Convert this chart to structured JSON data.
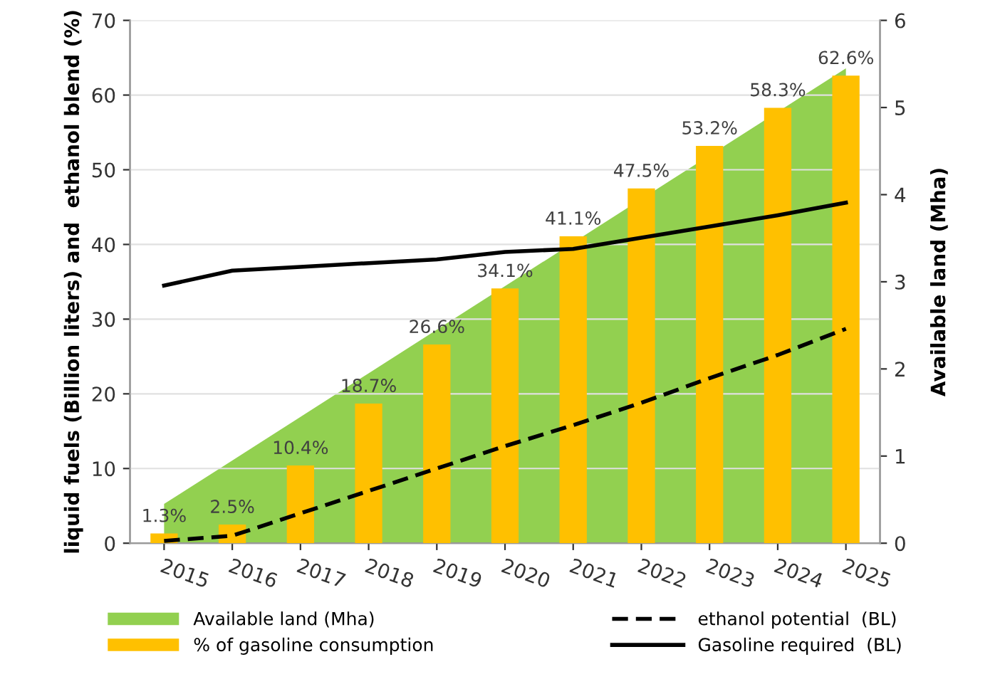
{
  "chart_data": {
    "type": "bar",
    "ylabel": "liquid fuels (Billion liters) and  ethanol blend (%)",
    "y2label": "Available land (Mha)",
    "categories": [
      "2015",
      "2016",
      "2017",
      "2018",
      "2019",
      "2020",
      "2021",
      "2022",
      "2023",
      "2024",
      "2025"
    ],
    "series": [
      {
        "name": "Available land (Mha)",
        "type": "area",
        "axis": "y2",
        "color": "#92d050",
        "values": [
          0.45,
          0.95,
          1.45,
          1.95,
          2.45,
          2.95,
          null,
          null,
          null,
          null,
          5.45
        ]
      },
      {
        "name": "% of gasoline consumption",
        "color": "#ffc000",
        "values": [
          1.3,
          2.5,
          10.4,
          18.7,
          26.6,
          34.1,
          41.1,
          47.5,
          53.2,
          58.3,
          62.6
        ],
        "value_labels": [
          "1.3%",
          "2.5%",
          "10.4%",
          "18.7%",
          "26.6%",
          "34.1%",
          "41.1%",
          "47.5%",
          "53.2%",
          "58.3%",
          "62.6%"
        ]
      },
      {
        "name": "ethanol potential  (BL)",
        "type": "line",
        "color": "#000000",
        "line_style": "dashed",
        "values": [
          0.3,
          1,
          4,
          7,
          10,
          13,
          15.8,
          18.8,
          22.1,
          25.2,
          28.7
        ]
      },
      {
        "name": "Gasoline required  (BL)",
        "type": "line",
        "color": "#000000",
        "line_style": "solid",
        "values": [
          34.5,
          36.5,
          37,
          37.5,
          38,
          39,
          39.4,
          40.9,
          42.4,
          43.9,
          45.6
        ]
      }
    ],
    "ylim": [
      0,
      70
    ],
    "yticks": [
      0,
      10,
      20,
      30,
      40,
      50,
      60,
      70
    ],
    "y2lim": [
      0,
      6
    ],
    "y2ticks": [
      0,
      1,
      2,
      3,
      4,
      5,
      6
    ],
    "grid": "y",
    "legend": "bottom"
  }
}
